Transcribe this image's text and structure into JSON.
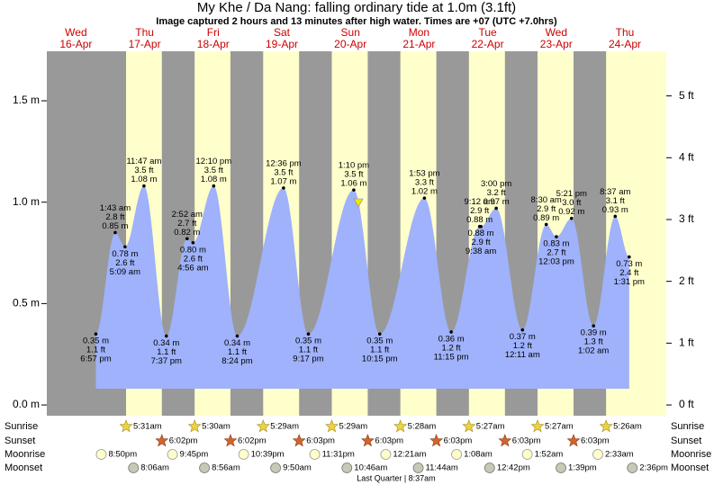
{
  "chart_data": {
    "type": "area",
    "title": "My Khe / Da Nang: falling  ordinary tide at 1.0m (3.1ft)",
    "subtitle": "Image captured 2 hours and 13 minutes after high water. Times are +07 (UTC +7.0hrs)",
    "weekdays": [
      "Wed",
      "Thu",
      "Fri",
      "Sat",
      "Sun",
      "Mon",
      "Tue",
      "Wed",
      "Thu"
    ],
    "categories": [
      "16-Apr",
      "17-Apr",
      "18-Apr",
      "19-Apr",
      "20-Apr",
      "21-Apr",
      "22-Apr",
      "23-Apr",
      "24-Apr"
    ],
    "x": [
      "6:57 pm",
      "1:43 am",
      "5:09 am",
      "11:47 am",
      "7:37 pm",
      "2:52 am",
      "4:56 am",
      "12:10 pm",
      "8:24 pm",
      "12:36 pm",
      "9:17 pm",
      "1:10 pm",
      "10:15 pm",
      "1:53 pm",
      "11:15 pm",
      "9:12 am",
      "9:38 am",
      "3:00 pm",
      "12:11 am",
      "8:30 am",
      "12:03 pm",
      "5:21 pm",
      "1:02 am",
      "8:37 am",
      "1:31 pm"
    ],
    "values": [
      0.35,
      0.85,
      0.78,
      1.08,
      0.34,
      0.82,
      0.8,
      1.08,
      0.34,
      1.07,
      0.35,
      1.06,
      0.35,
      1.02,
      0.36,
      0.88,
      0.88,
      0.97,
      0.37,
      0.89,
      0.83,
      0.92,
      0.39,
      0.93,
      0.73
    ],
    "value_labels": [
      "0.35 m",
      "0.85 m",
      "0.78 m",
      "1.08 m",
      "0.34 m",
      "0.82 m",
      "0.80 m",
      "1.08 m",
      "0.34 m",
      "1.07 m",
      "0.35 m",
      "1.06 m",
      "0.35 m",
      "1.02 m",
      "0.36 m",
      "0.88 m",
      "0.88 m",
      "0.97 m",
      "0.37 m",
      "0.89 m",
      "0.83 m",
      "0.92 m",
      "0.39 m",
      "0.93 m",
      "0.73 m"
    ],
    "ft_labels": [
      "1.1 ft",
      "2.8 ft",
      "2.6 ft",
      "3.5 ft",
      "1.1 ft",
      "2.7 ft",
      "2.6 ft",
      "3.5 ft",
      "1.1 ft",
      "3.5 ft",
      "1.1 ft",
      "3.5 ft",
      "1.1 ft",
      "3.3 ft",
      "1.2 ft",
      "2.9 ft",
      "2.9 ft",
      "3.2 ft",
      "1.2 ft",
      "2.9 ft",
      "2.7 ft",
      "3.0 ft",
      "1.3 ft",
      "3.1 ft",
      "2.4 ft"
    ],
    "color": "#9fb2fb",
    "day_color": "#ffffcc",
    "night_color": "#999999",
    "ylim": [
      -0.053,
      1.744
    ],
    "yticks": [
      {
        "value": 0,
        "label": "0.0 m"
      },
      {
        "value": 0.5,
        "label": "0.5 m"
      },
      {
        "value": 1,
        "label": "1.0 m"
      },
      {
        "value": 1.5,
        "label": "1.5 m"
      }
    ],
    "y2lim": [
      -0.174,
      5.722
    ],
    "y2ticks": [
      {
        "value": 0,
        "label": "0 ft"
      },
      {
        "value": 1,
        "label": "1 ft"
      },
      {
        "value": 2,
        "label": "2 ft"
      },
      {
        "value": 3,
        "label": "3 ft"
      },
      {
        "value": 4,
        "label": "4 ft"
      },
      {
        "value": 5,
        "label": "5 ft"
      }
    ],
    "almanac": [
      {
        "label": "Sunrise",
        "times": [
          null,
          "5:31am",
          "5:30am",
          "5:29am",
          "5:29am",
          "5:28am",
          "5:27am",
          "5:27am",
          "5:26am"
        ]
      },
      {
        "label": "Sunset",
        "times": [
          null,
          "6:02pm",
          "6:02pm",
          "6:03pm",
          "6:03pm",
          "6:03pm",
          "6:03pm",
          "6:03pm",
          null
        ]
      },
      {
        "label": "Moonrise",
        "times": [
          "8:50pm",
          "9:45pm",
          "10:39pm",
          "11:31pm",
          null,
          "12:21am",
          "1:08am",
          "1:52am",
          "2:33am"
        ]
      },
      {
        "label": "Moonset",
        "times": [
          null,
          "8:06am",
          "8:56am",
          "9:50am",
          "10:46am",
          "11:44am",
          "12:42pm",
          "1:39pm",
          "2:36pm"
        ]
      }
    ],
    "moon_phase": "Last Quarter | 8:37am"
  }
}
